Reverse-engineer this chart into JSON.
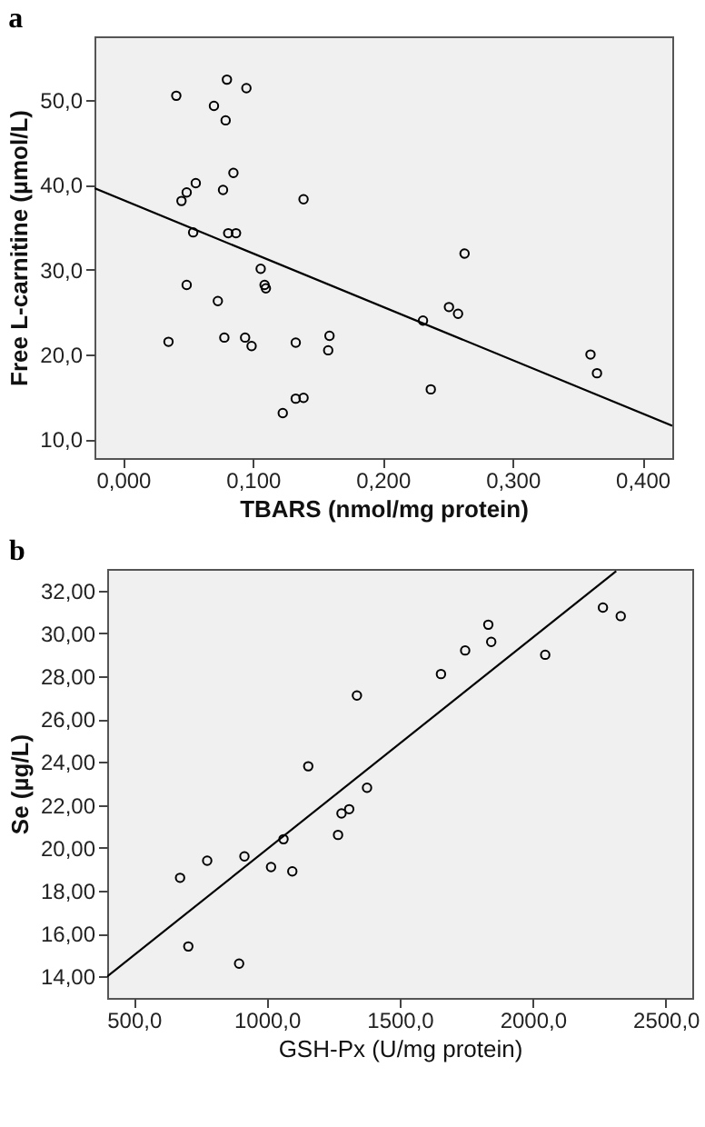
{
  "chart_data": [
    {
      "type": "scatter",
      "title": "a",
      "xlabel": "TBARS (nmol/mg protein)",
      "ylabel": "Free L-carnitine (µmol/L)",
      "grid": false,
      "xlim": [
        -0.022,
        0.423
      ],
      "ylim": [
        7.8,
        57.5
      ],
      "xticks": [
        {
          "value": 0,
          "label": "0,000"
        },
        {
          "value": 0.1,
          "label": "0,100"
        },
        {
          "value": 0.2,
          "label": "0,200"
        },
        {
          "value": 0.3,
          "label": "0,300"
        },
        {
          "value": 0.4,
          "label": "0,400"
        }
      ],
      "yticks": [
        {
          "value": 10,
          "label": "10,0"
        },
        {
          "value": 20,
          "label": "20,0"
        },
        {
          "value": 30,
          "label": "30,0"
        },
        {
          "value": 40,
          "label": "40,0"
        },
        {
          "value": 50,
          "label": "50,0"
        }
      ],
      "series": [
        {
          "marker": "circle",
          "color": "#000000",
          "x": [
            0.041,
            0.08,
            0.095,
            0.07,
            0.079,
            0.085,
            0.056,
            0.077,
            0.049,
            0.045,
            0.139,
            0.054,
            0.081,
            0.087,
            0.106,
            0.263,
            0.049,
            0.109,
            0.11,
            0.073,
            0.035,
            0.078,
            0.094,
            0.099,
            0.133,
            0.159,
            0.158,
            0.133,
            0.139,
            0.123,
            0.231,
            0.251,
            0.258,
            0.237,
            0.36,
            0.365
          ],
          "values": [
            50.5,
            52.4,
            51.4,
            49.3,
            47.6,
            41.4,
            40.2,
            39.4,
            39.1,
            38.1,
            38.3,
            34.4,
            34.3,
            34.3,
            30.1,
            31.9,
            28.2,
            28.2,
            27.8,
            26.3,
            21.5,
            22.0,
            22.0,
            21.0,
            21.4,
            22.2,
            20.5,
            14.8,
            14.9,
            13.1,
            24.0,
            25.6,
            24.8,
            15.9,
            20.0,
            17.8
          ]
        },
        {
          "type": "line",
          "marker": "none",
          "color": "#000000",
          "x": [
            -0.022,
            0.423
          ],
          "values": [
            39.6,
            11.6
          ]
        }
      ]
    },
    {
      "type": "scatter",
      "title": "b",
      "xlabel": "GSH-Px (U/mg protein)",
      "ylabel": "Se (µg/L)",
      "grid": false,
      "xlim": [
        400,
        2600
      ],
      "ylim": [
        13,
        33
      ],
      "xticks": [
        {
          "value": 500,
          "label": "500,0"
        },
        {
          "value": 1000,
          "label": "1000,0"
        },
        {
          "value": 1500,
          "label": "1500,0"
        },
        {
          "value": 2000,
          "label": "2000,0"
        },
        {
          "value": 2500,
          "label": "2500,0"
        }
      ],
      "yticks": [
        {
          "value": 14,
          "label": "14,00"
        },
        {
          "value": 16,
          "label": "16,00"
        },
        {
          "value": 18,
          "label": "18,00"
        },
        {
          "value": 20,
          "label": "20,00"
        },
        {
          "value": 22,
          "label": "22,00"
        },
        {
          "value": 24,
          "label": "24,00"
        },
        {
          "value": 26,
          "label": "26,00"
        },
        {
          "value": 28,
          "label": "28,00"
        },
        {
          "value": 30,
          "label": "30,00"
        },
        {
          "value": 32,
          "label": "32,00"
        }
      ],
      "series": [
        {
          "marker": "circle",
          "color": "#000000",
          "x": [
            2264,
            2331,
            1833,
            1844,
            1746,
            2047,
            1655,
            1339,
            1156,
            1377,
            1310,
            1281,
            1268,
            1063,
            1016,
            1096,
            916,
            776,
            674,
            705,
            896
          ],
          "values": [
            31.2,
            30.8,
            30.4,
            29.6,
            29.2,
            29.0,
            28.1,
            27.1,
            23.8,
            22.8,
            21.8,
            21.6,
            20.6,
            20.4,
            19.1,
            18.9,
            19.6,
            19.4,
            18.6,
            15.4,
            14.6
          ]
        },
        {
          "type": "line",
          "marker": "none",
          "color": "#000000",
          "x": [
            400,
            2314
          ],
          "values": [
            14.0,
            32.9
          ]
        }
      ]
    }
  ]
}
